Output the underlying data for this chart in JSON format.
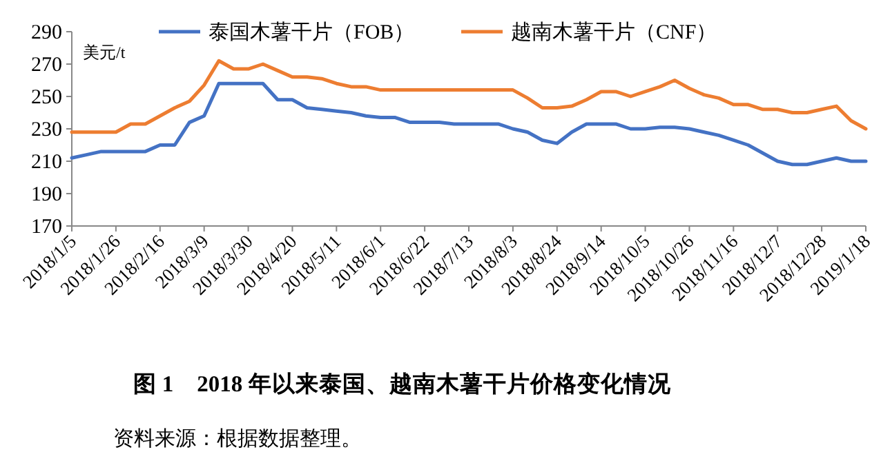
{
  "chart_data": {
    "type": "line",
    "title": "图 1　2018 年以来泰国、越南木薯干片价格变化情况",
    "ylabel": "美元/t",
    "categories": [
      "2018/1/5",
      null,
      null,
      "2018/1/26",
      null,
      null,
      "2018/2/16",
      null,
      null,
      "2018/3/9",
      null,
      null,
      "2018/3/30",
      null,
      null,
      "2018/4/20",
      null,
      null,
      "2018/5/11",
      null,
      null,
      "2018/6/1",
      null,
      null,
      "2018/6/22",
      null,
      null,
      "2018/7/13",
      null,
      null,
      "2018/8/3",
      null,
      null,
      "2018/8/24",
      null,
      null,
      "2018/9/14",
      null,
      null,
      "2018/10/5",
      null,
      null,
      "2018/10/26",
      null,
      null,
      "2018/11/16",
      null,
      null,
      "2018/12/7",
      null,
      null,
      "2018/12/28",
      null,
      null,
      "2019/1/18"
    ],
    "series": [
      {
        "name": "泰国木薯干片（FOB）",
        "color": "#4472c4",
        "values": [
          212,
          214,
          216,
          216,
          216,
          216,
          220,
          220,
          234,
          238,
          258,
          258,
          258,
          258,
          248,
          248,
          243,
          242,
          241,
          240,
          238,
          237,
          237,
          234,
          234,
          234,
          233,
          233,
          233,
          233,
          230,
          228,
          223,
          221,
          228,
          233,
          233,
          233,
          230,
          230,
          231,
          231,
          230,
          228,
          226,
          223,
          220,
          215,
          210,
          208,
          208,
          210,
          212,
          210,
          210
        ]
      },
      {
        "name": "越南木薯干片（CNF）",
        "color": "#ed7d31",
        "values": [
          228,
          228,
          228,
          228,
          233,
          233,
          238,
          243,
          247,
          257,
          272,
          267,
          267,
          270,
          266,
          262,
          262,
          261,
          258,
          256,
          256,
          254,
          254,
          254,
          254,
          254,
          254,
          254,
          254,
          254,
          254,
          249,
          243,
          243,
          244,
          248,
          253,
          253,
          250,
          253,
          256,
          260,
          255,
          251,
          249,
          245,
          245,
          242,
          242,
          240,
          240,
          242,
          244,
          235,
          230
        ]
      }
    ],
    "ylim": [
      170,
      290
    ],
    "yticks": [
      170,
      190,
      210,
      230,
      250,
      270,
      290
    ],
    "legend": "top",
    "grid": false,
    "annotations": [
      "资料来源：根据数据整理。"
    ]
  }
}
